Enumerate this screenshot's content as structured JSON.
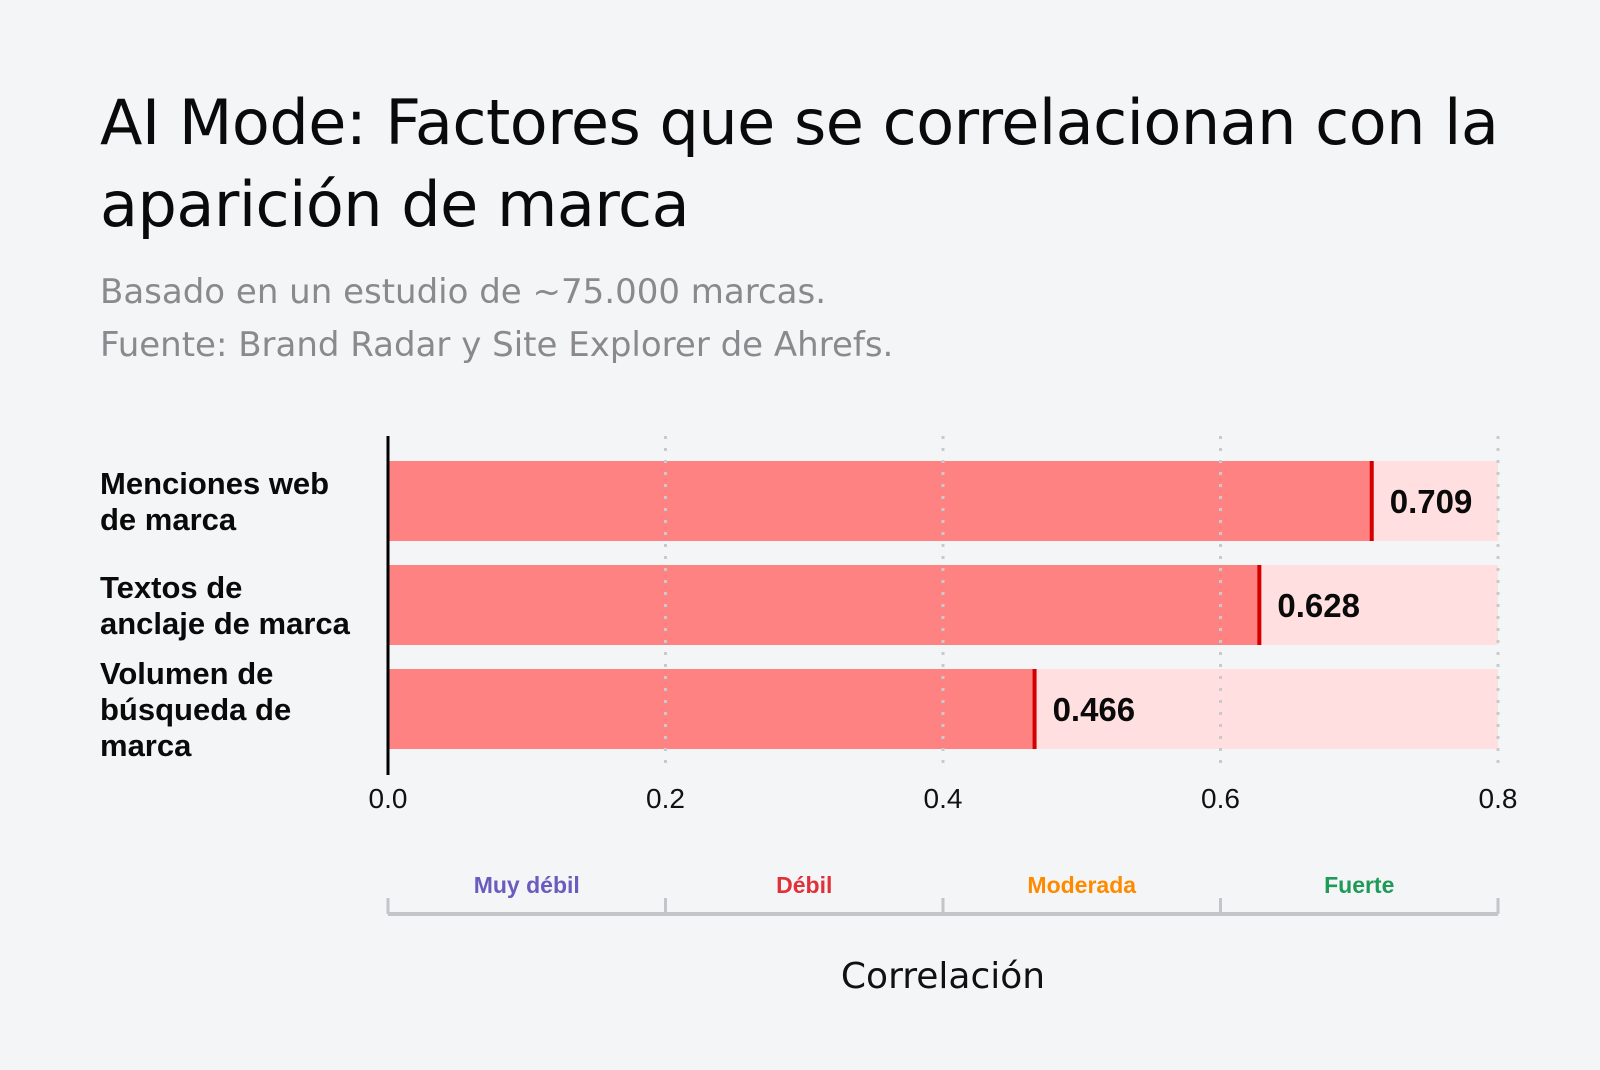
{
  "header": {
    "title": "AI Mode: Factores que se correlacionan con la aparición de marca",
    "subtitle_line1": "Basado en un estudio de ~75.000 marcas.",
    "subtitle_line2": "Fuente: Brand Radar y Site Explorer de Ahrefs."
  },
  "chart_data": {
    "type": "bar",
    "orientation": "horizontal",
    "categories": [
      [
        "Menciones web",
        "de marca"
      ],
      [
        "Textos de",
        "anclaje de marca"
      ],
      [
        "Volumen de",
        "búsqueda de",
        "marca"
      ]
    ],
    "values": [
      0.709,
      0.628,
      0.466
    ],
    "value_labels": [
      "0.709",
      "0.628",
      "0.466"
    ],
    "xlabel": "Correlación",
    "xlim": [
      0,
      0.8
    ],
    "xticks": [
      0.0,
      0.2,
      0.4,
      0.6,
      0.8
    ],
    "xtick_labels": [
      "0.0",
      "0.2",
      "0.4",
      "0.6",
      "0.8"
    ],
    "grid": "vertical dotted",
    "bands": [
      {
        "label": "Muy débil",
        "range": [
          0.0,
          0.2
        ],
        "color": "#6b5bbf"
      },
      {
        "label": "Débil",
        "range": [
          0.2,
          0.4
        ],
        "color": "#e0313a"
      },
      {
        "label": "Moderada",
        "range": [
          0.4,
          0.6
        ],
        "color": "#ff8a00"
      },
      {
        "label": "Fuerte",
        "range": [
          0.6,
          0.8
        ],
        "color": "#1f9a57"
      }
    ],
    "colors": {
      "bar": "#ff8282",
      "remainder": "#ffdfe0",
      "marker": "#d40000"
    }
  }
}
